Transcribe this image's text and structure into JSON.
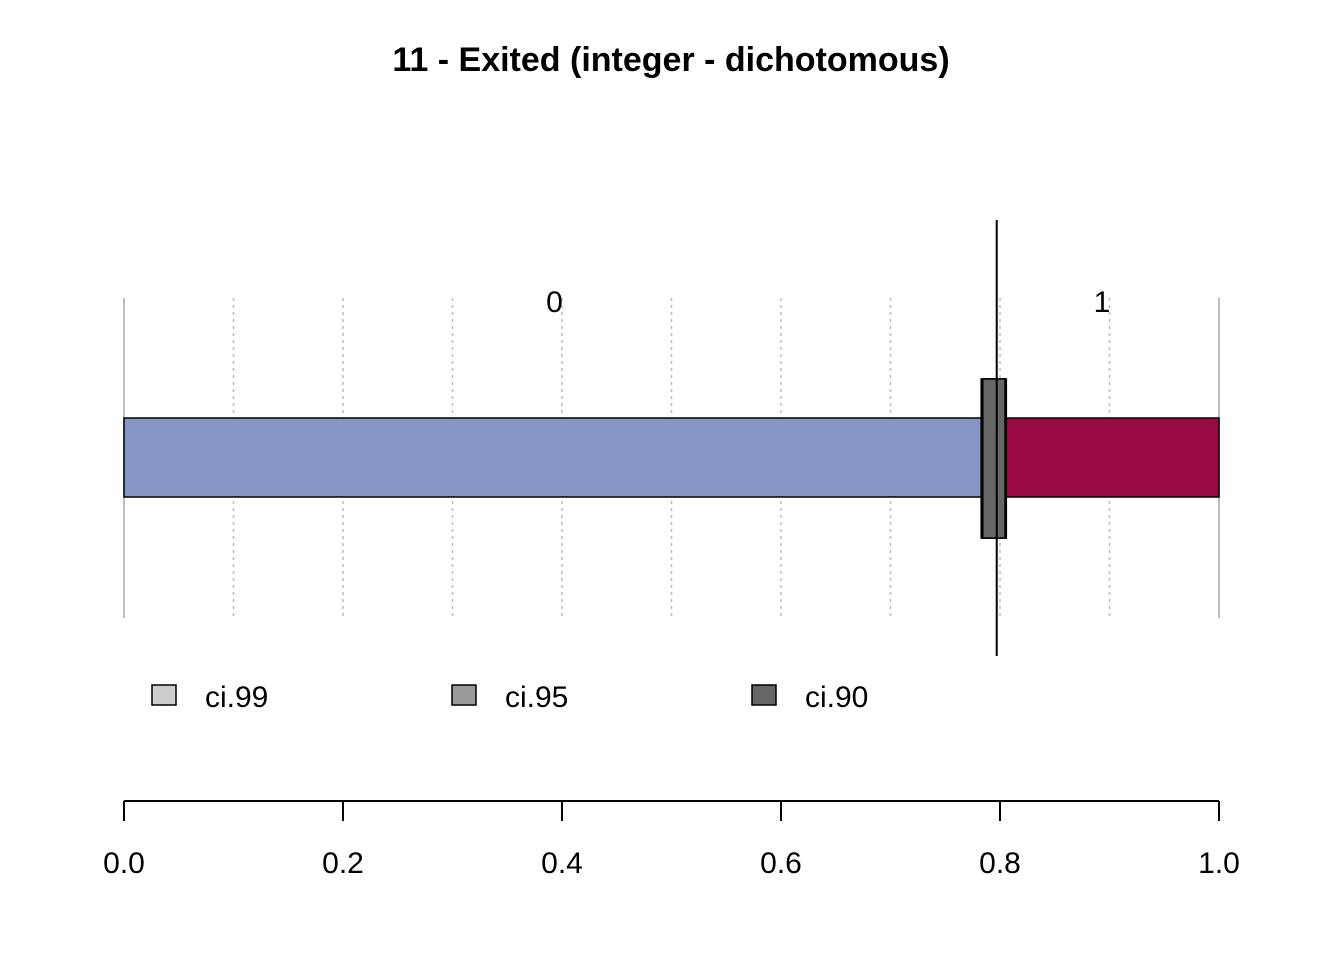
{
  "chart_data": {
    "type": "bar",
    "orientation": "horizontal",
    "stacked": true,
    "title": "11 - Exited (integer - dichotomous)",
    "categories": [
      "0",
      "1"
    ],
    "values": [
      0.7863,
      0.2137
    ],
    "colors": [
      "#8497C4",
      "#990A42"
    ],
    "reference_line": 0.797,
    "confidence_intervals": [
      {
        "name": "ci.99",
        "low": 0.7828,
        "high": 0.8058,
        "color": "#CCCCCC"
      },
      {
        "name": "ci.95",
        "low": 0.7836,
        "high": 0.8052,
        "color": "#999999"
      },
      {
        "name": "ci.90",
        "low": 0.7843,
        "high": 0.8046,
        "color": "#666666"
      }
    ],
    "xlim": [
      0,
      1
    ],
    "x_ticks": [
      "0.0",
      "0.2",
      "0.4",
      "0.6",
      "0.8",
      "1.0"
    ],
    "minor_gridlines": [
      0.1,
      0.3,
      0.5,
      0.7,
      0.9
    ],
    "grid": true,
    "legend_position": "bottom"
  }
}
